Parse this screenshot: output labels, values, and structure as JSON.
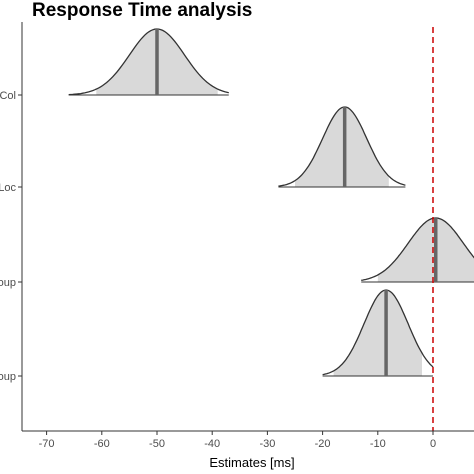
{
  "chart_data": {
    "type": "area",
    "title": "Response Time analysis",
    "xlabel": "Estimates [ms]",
    "ylabel": "",
    "xlim": [
      -73,
      8
    ],
    "x_ticks": [
      -70,
      -60,
      -50,
      -40,
      -30,
      -20,
      -10,
      0
    ],
    "categories": [
      "Col",
      "Loc",
      "oup",
      "oup"
    ],
    "series": [
      {
        "name": "Col",
        "mean": -50,
        "sd": 5,
        "range": [
          -66,
          -37
        ],
        "inner_range": [
          -61,
          -39
        ]
      },
      {
        "name": "Loc",
        "mean": -16,
        "sd": 4,
        "range": [
          -28,
          -5
        ],
        "inner_range": [
          -25,
          -8
        ]
      },
      {
        "name": "oup",
        "mean": 0.5,
        "sd": 5,
        "range": [
          -13,
          8
        ],
        "inner_range": [
          -10,
          8
        ]
      },
      {
        "name": "oup",
        "mean": -8.5,
        "sd": 4,
        "range": [
          -20,
          0
        ],
        "inner_range": [
          -18,
          -2
        ]
      }
    ],
    "reference_line": {
      "x": 0,
      "color": "#cc0000",
      "style": "dashed"
    },
    "fill_color": "#d9d9d9",
    "inner_fill_color": "#e6e6e6",
    "line_color": "#333333",
    "median_color": "#666666",
    "grid": false
  }
}
